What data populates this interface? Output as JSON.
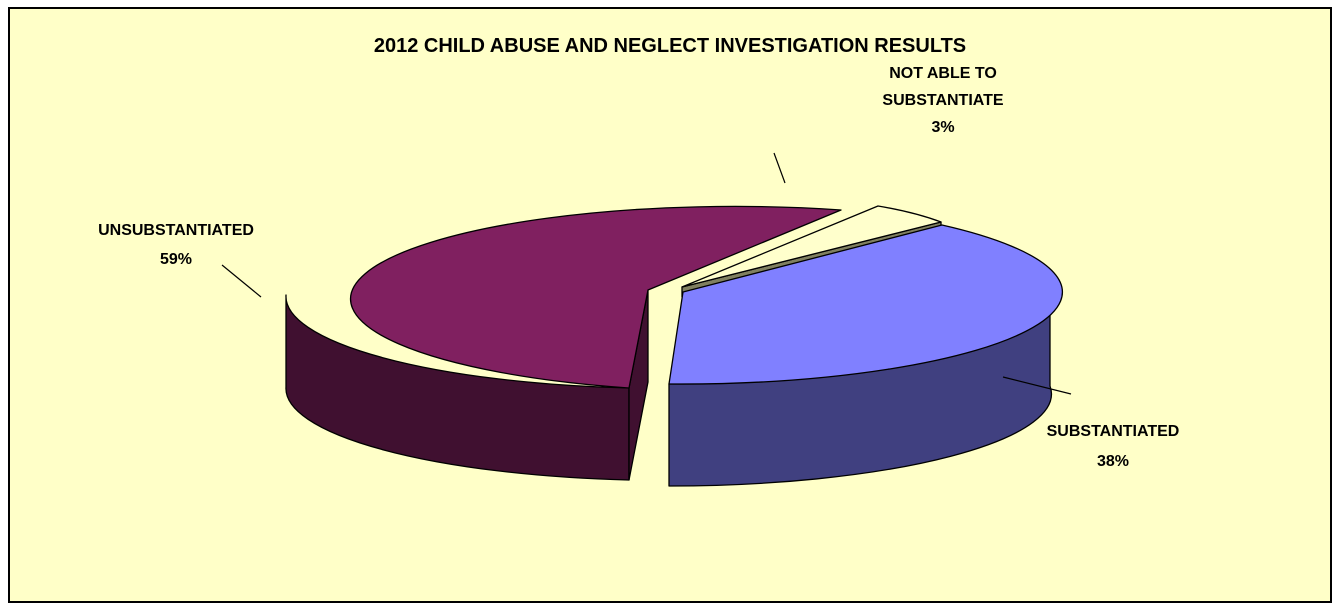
{
  "chart_data": {
    "type": "pie",
    "title": "2012 CHILD ABUSE AND NEGLECT INVESTIGATION RESULTS",
    "slices": [
      {
        "label": "SUBSTANTIATED",
        "value": 38,
        "value_label": "38%",
        "color": "#8080ff",
        "side_color": "#404080"
      },
      {
        "label": "NOT ABLE TO SUBSTANTIATE",
        "label_lines": [
          "NOT ABLE TO",
          "SUBSTANTIATE"
        ],
        "value": 3,
        "value_label": "3%",
        "color": "#ffffcc",
        "side_color": "#808060"
      },
      {
        "label": "UNSUBSTANTIATED",
        "value": 59,
        "value_label": "59%",
        "color": "#802060",
        "side_color": "#401030"
      }
    ],
    "style": "3d-exploded",
    "background": "#ffffc8"
  }
}
